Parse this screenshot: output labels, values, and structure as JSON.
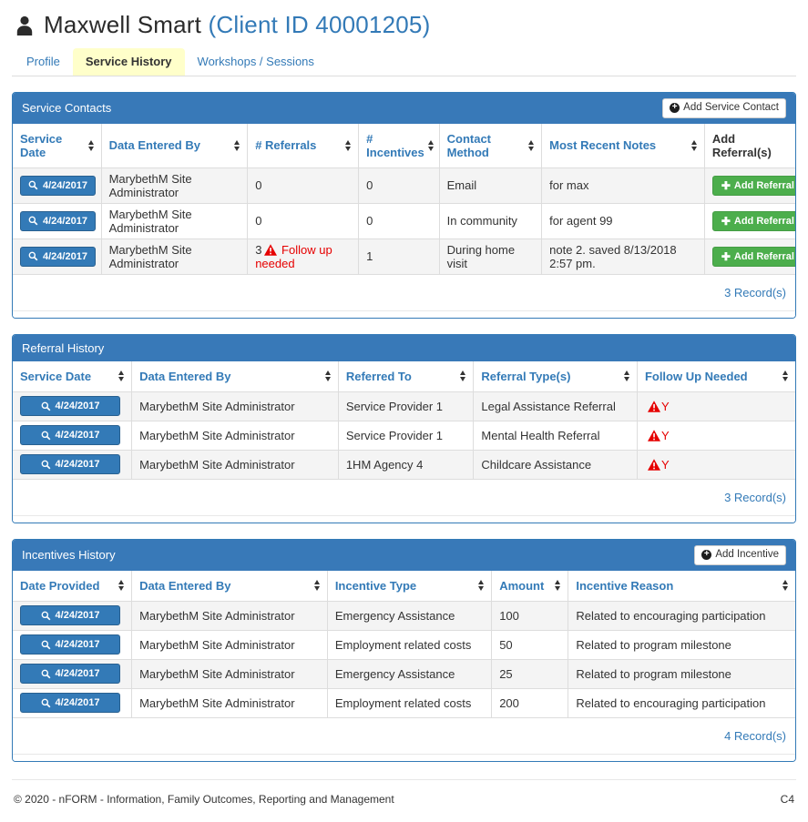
{
  "header": {
    "name": "Maxwell Smart",
    "client_id": "(Client ID 40001205)"
  },
  "tabs": [
    {
      "label": "Profile"
    },
    {
      "label": "Service History"
    },
    {
      "label": "Workshops / Sessions"
    }
  ],
  "colors": {
    "accent_blue": "#337ab7",
    "panel_blue": "#3879b8",
    "active_tab_yellow": "#ffffca",
    "success_green": "#4cae4c",
    "alert_red": "#e60000"
  },
  "panels": {
    "service_contacts": {
      "title": "Service Contacts",
      "add_button": "Add Service Contact",
      "row_button": "Add Referral",
      "columns": [
        {
          "label": "Service Date",
          "sortable": true
        },
        {
          "label": "Data Entered By",
          "sortable": true
        },
        {
          "label": "# Referrals",
          "sortable": true
        },
        {
          "label": "# Incentives",
          "sortable": true
        },
        {
          "label": "Contact Method",
          "sortable": true
        },
        {
          "label": "Most Recent Notes",
          "sortable": true
        },
        {
          "label": "Add Referral(s)",
          "sortable": false,
          "dark": true
        }
      ],
      "rows": [
        {
          "date": "4/24/2017",
          "entered_by": "MarybethM Site Administrator",
          "referrals": "0",
          "followup": "",
          "incentives": "0",
          "contact_method": "Email",
          "notes": "for max"
        },
        {
          "date": "4/24/2017",
          "entered_by": "MarybethM Site Administrator",
          "referrals": "0",
          "followup": "",
          "incentives": "0",
          "contact_method": "In community",
          "notes": "for agent 99"
        },
        {
          "date": "4/24/2017",
          "entered_by": "MarybethM Site Administrator",
          "referrals": "3",
          "followup": "Follow up needed",
          "incentives": "1",
          "contact_method": "During home visit",
          "notes": "note 2. saved 8/13/2018 2:57 pm."
        }
      ],
      "record_count": "3 Record(s)"
    },
    "referral_history": {
      "title": "Referral History",
      "columns": [
        {
          "label": "Service Date",
          "sortable": true
        },
        {
          "label": "Data Entered By",
          "sortable": true
        },
        {
          "label": "Referred To",
          "sortable": true
        },
        {
          "label": "Referral Type(s)",
          "sortable": true
        },
        {
          "label": "Follow Up Needed",
          "sortable": true
        }
      ],
      "rows": [
        {
          "date": "4/24/2017",
          "entered_by": "MarybethM Site Administrator",
          "referred_to": "Service Provider 1",
          "type": "Legal Assistance Referral",
          "followup": "Y"
        },
        {
          "date": "4/24/2017",
          "entered_by": "MarybethM Site Administrator",
          "referred_to": "Service Provider 1",
          "type": "Mental Health Referral",
          "followup": "Y"
        },
        {
          "date": "4/24/2017",
          "entered_by": "MarybethM Site Administrator",
          "referred_to": "1HM Agency 4",
          "type": "Childcare Assistance",
          "followup": "Y"
        }
      ],
      "record_count": "3 Record(s)"
    },
    "incentives_history": {
      "title": "Incentives History",
      "add_button": "Add Incentive",
      "columns": [
        {
          "label": "Date Provided",
          "sortable": true
        },
        {
          "label": "Data Entered By",
          "sortable": true
        },
        {
          "label": "Incentive Type",
          "sortable": true
        },
        {
          "label": "Amount",
          "sortable": true
        },
        {
          "label": "Incentive Reason",
          "sortable": true
        }
      ],
      "rows": [
        {
          "date": "4/24/2017",
          "entered_by": "MarybethM Site Administrator",
          "type": "Emergency Assistance",
          "amount": "100",
          "reason": "Related to encouraging participation"
        },
        {
          "date": "4/24/2017",
          "entered_by": "MarybethM Site Administrator",
          "type": "Employment related costs",
          "amount": "50",
          "reason": "Related to program milestone"
        },
        {
          "date": "4/24/2017",
          "entered_by": "MarybethM Site Administrator",
          "type": "Emergency Assistance",
          "amount": "25",
          "reason": "Related to program milestone"
        },
        {
          "date": "4/24/2017",
          "entered_by": "MarybethM Site Administrator",
          "type": "Employment related costs",
          "amount": "200",
          "reason": "Related to encouraging participation"
        }
      ],
      "record_count": "4 Record(s)"
    }
  },
  "footer": {
    "copyright": "© 2020 - nFORM - Information, Family Outcomes, Reporting and Management",
    "version": "C4"
  }
}
